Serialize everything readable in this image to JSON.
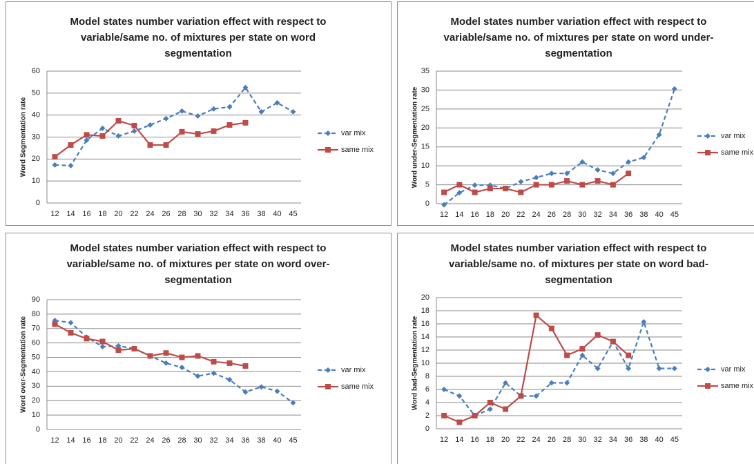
{
  "chart_data": [
    {
      "type": "line",
      "title": "Model states number variation effect with respect to variable/same no. of mixtures per state on word segmentation",
      "y_label": "Word Segmentation rate",
      "categories": [
        "12",
        "14",
        "16",
        "18",
        "20",
        "22",
        "24",
        "26",
        "28",
        "30",
        "32",
        "34",
        "36",
        "38",
        "40",
        "45"
      ],
      "ylim": [
        0,
        60
      ],
      "yticks": [
        0,
        10,
        20,
        30,
        40,
        50,
        60
      ],
      "grid": true,
      "series": [
        {
          "name": "var mix",
          "color": "#4a7ebb",
          "values": [
            17.3,
            17,
            28.6,
            34,
            30.5,
            32.7,
            35.5,
            38.4,
            41.8,
            39.6,
            42.8,
            43.7,
            52.5,
            41.5,
            45.6,
            41.5
          ]
        },
        {
          "name": "same mix",
          "color": "#be4b48",
          "values": [
            21,
            26.4,
            31,
            30.5,
            37.4,
            35.2,
            26.4,
            26.4,
            32.4,
            31.4,
            32.7,
            35.5,
            36.5,
            null,
            null,
            null
          ]
        }
      ]
    },
    {
      "type": "line",
      "title": "Model states number variation effect with respect to variable/same no. of mixtures per state on word under-segmentation",
      "y_label": "Word under-Segmentation rate",
      "categories": [
        "12",
        "14",
        "16",
        "18",
        "20",
        "22",
        "24",
        "26",
        "28",
        "30",
        "32",
        "34",
        "36",
        "38",
        "40",
        "45"
      ],
      "ylim": [
        0,
        35
      ],
      "yticks": [
        0,
        5,
        10,
        15,
        20,
        25,
        30,
        35
      ],
      "grid": true,
      "series": [
        {
          "name": "var mix",
          "color": "#4a7ebb",
          "values": [
            -0.3,
            2.9,
            4.9,
            4.9,
            4,
            5.8,
            6.9,
            8,
            8,
            11,
            8.9,
            8,
            11,
            12.2,
            18.2,
            30.3
          ]
        },
        {
          "name": "same mix",
          "color": "#be4b48",
          "values": [
            3,
            5,
            3,
            4,
            4,
            3,
            5,
            5,
            6,
            5,
            6,
            5,
            8,
            null,
            null,
            null
          ]
        }
      ]
    },
    {
      "type": "line",
      "title": "Model states number variation effect with respect to variable/same no. of mixtures per state on word over-segmentation",
      "y_label": "Word over-Segmentation rate",
      "categories": [
        "12",
        "14",
        "16",
        "18",
        "20",
        "22",
        "24",
        "26",
        "28",
        "30",
        "32",
        "34",
        "36",
        "38",
        "40",
        "45"
      ],
      "ylim": [
        0,
        90
      ],
      "yticks": [
        0,
        10,
        20,
        30,
        40,
        50,
        60,
        70,
        80,
        90
      ],
      "grid": true,
      "series": [
        {
          "name": "var mix",
          "color": "#4a7ebb",
          "values": [
            75.6,
            74,
            64,
            57.4,
            58,
            56,
            51,
            46,
            43,
            37,
            39,
            34.5,
            26,
            29.5,
            26.5,
            18.5
          ]
        },
        {
          "name": "same mix",
          "color": "#be4b48",
          "values": [
            73,
            67,
            63,
            61,
            55,
            56,
            51,
            53,
            50,
            51,
            47,
            46,
            44,
            null,
            null,
            null
          ]
        }
      ]
    },
    {
      "type": "line",
      "title": "Model states number variation effect with respect to variable/same no. of mixtures per state on word bad-segmentation",
      "y_label": "Word bad-Segmentation rate",
      "categories": [
        "12",
        "14",
        "16",
        "18",
        "20",
        "22",
        "24",
        "26",
        "28",
        "30",
        "32",
        "34",
        "36",
        "38",
        "40",
        "45"
      ],
      "ylim": [
        0,
        20
      ],
      "yticks": [
        0,
        2,
        4,
        6,
        8,
        10,
        12,
        14,
        16,
        18,
        20
      ],
      "grid": true,
      "series": [
        {
          "name": "var mix",
          "color": "#4a7ebb",
          "values": [
            6,
            5,
            2,
            3,
            7,
            5,
            5,
            7,
            7,
            11.2,
            9.2,
            13.3,
            9.2,
            16.3,
            9.2,
            9.2
          ]
        },
        {
          "name": "same mix",
          "color": "#be4b48",
          "values": [
            2,
            1,
            2,
            4,
            3,
            5,
            17.3,
            15.3,
            11.2,
            12.2,
            14.3,
            13.3,
            11.2,
            null,
            null,
            null
          ]
        }
      ]
    }
  ]
}
